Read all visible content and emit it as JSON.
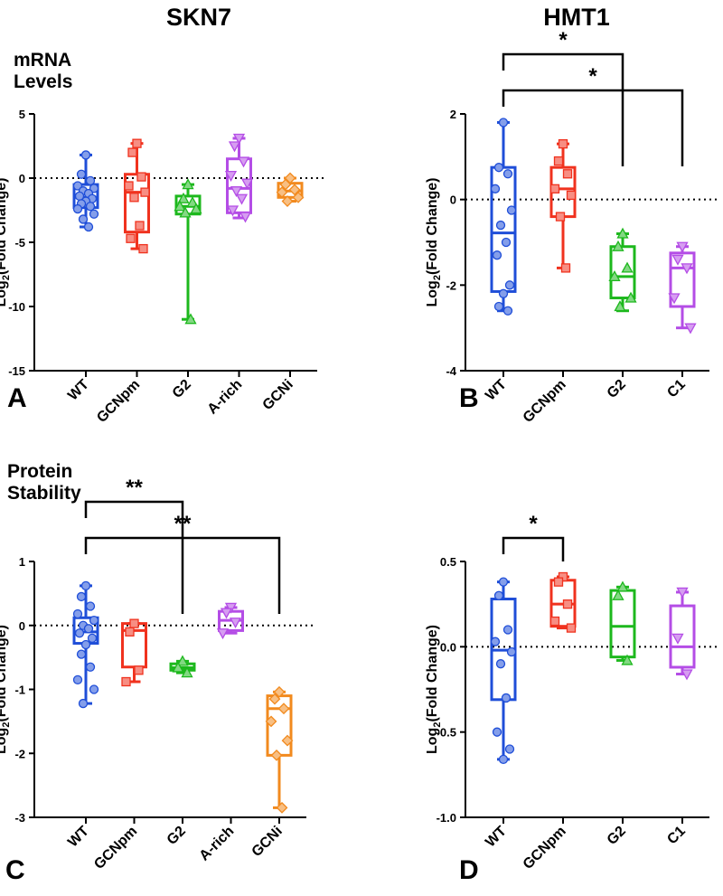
{
  "figure": {
    "col_titles": [
      "SKN7",
      "HMT1"
    ],
    "row_titles": [
      "mRNA\nLevels",
      "Protein\nStability"
    ],
    "group_colors": {
      "WT": "#1f4ed8",
      "GCNpm": "#f0321e",
      "G2": "#1db81d",
      "A-rich": "#b44de6",
      "C1": "#b44de6",
      "GCNi": "#f28a1e"
    },
    "marker_shapes": {
      "WT": "circle",
      "GCNpm": "square",
      "G2": "triangle-up",
      "A-rich": "triangle-down",
      "C1": "triangle-down",
      "GCNi": "diamond"
    }
  },
  "chart_data": [
    {
      "panel": "A",
      "type": "box",
      "ylabel": "Log2(Fold Change)",
      "ylim": [
        -15,
        5
      ],
      "yticks": [
        5,
        0,
        -5,
        -10,
        -15
      ],
      "reference_line": 0,
      "categories": [
        "WT",
        "GCNpm",
        "G2",
        "A-rich",
        "GCNi"
      ],
      "boxes": [
        {
          "category": "WT",
          "min": -3.8,
          "q1": -2.3,
          "median": -1.5,
          "q3": -0.5,
          "max": 1.8,
          "points": [
            1.8,
            0.3,
            -0.2,
            -0.6,
            -0.8,
            -1.0,
            -1.2,
            -1.4,
            -1.6,
            -1.8,
            -2.0,
            -2.2,
            -2.4,
            -2.8,
            -3.2,
            -3.8
          ]
        },
        {
          "category": "GCNpm",
          "min": -5.5,
          "q1": -4.2,
          "median": -1.1,
          "q3": 0.3,
          "max": 2.7,
          "points": [
            2.7,
            2.0,
            0.1,
            -0.6,
            -1.1,
            -1.5,
            -3.7,
            -4.7,
            -5.5
          ]
        },
        {
          "category": "G2",
          "min": -11.0,
          "q1": -2.8,
          "median": -2.2,
          "q3": -1.4,
          "max": -0.5,
          "points": [
            -0.5,
            -1.6,
            -1.9,
            -2.2,
            -2.4,
            -2.7,
            -11.0
          ]
        },
        {
          "category": "A-rich",
          "min": -3.1,
          "q1": -2.7,
          "median": -0.8,
          "q3": 1.5,
          "max": 3.1,
          "points": [
            3.1,
            2.5,
            1.3,
            0.2,
            -0.4,
            -1.0,
            -1.6,
            -2.5,
            -3.0
          ]
        },
        {
          "category": "GCNi",
          "min": -1.8,
          "q1": -1.5,
          "median": -1.0,
          "q3": -0.4,
          "max": 0.0,
          "points": [
            0.0,
            -0.5,
            -0.9,
            -1.1,
            -1.5,
            -1.8
          ]
        }
      ],
      "significance": []
    },
    {
      "panel": "B",
      "type": "box",
      "ylabel": "Log2(Fold Change)",
      "ylim": [
        -4,
        2
      ],
      "yticks": [
        2,
        0,
        -2,
        -4
      ],
      "reference_line": 0,
      "categories": [
        "WT",
        "GCNpm",
        "G2",
        "C1"
      ],
      "boxes": [
        {
          "category": "WT",
          "min": -2.6,
          "q1": -2.15,
          "median": -0.78,
          "q3": 0.75,
          "max": 1.8,
          "points": [
            1.8,
            0.75,
            0.6,
            0.25,
            -0.25,
            -0.6,
            -1.0,
            -1.3,
            -2.0,
            -2.2,
            -2.5,
            -2.6
          ]
        },
        {
          "category": "GCNpm",
          "min": -1.6,
          "q1": -0.4,
          "median": 0.25,
          "q3": 0.75,
          "max": 1.3,
          "points": [
            1.3,
            0.9,
            0.6,
            0.25,
            0.1,
            -0.4,
            -1.6
          ]
        },
        {
          "category": "G2",
          "min": -2.6,
          "q1": -2.3,
          "median": -1.8,
          "q3": -1.1,
          "max": -0.8,
          "points": [
            -0.8,
            -1.1,
            -1.6,
            -1.8,
            -2.3,
            -2.5
          ]
        },
        {
          "category": "C1",
          "min": -3.0,
          "q1": -2.5,
          "median": -1.6,
          "q3": -1.25,
          "max": -1.1,
          "points": [
            -1.1,
            -1.4,
            -1.6,
            -2.3,
            -3.0
          ]
        }
      ],
      "significance": [
        {
          "from": "WT",
          "to": "G2",
          "label": "*"
        },
        {
          "from": "WT",
          "to": "C1",
          "label": "*"
        }
      ]
    },
    {
      "panel": "C",
      "type": "box",
      "ylabel": "Log2(Fold Change)",
      "ylim": [
        -3,
        1
      ],
      "yticks": [
        1,
        0,
        -1,
        -2,
        -3
      ],
      "reference_line": 0,
      "categories": [
        "WT",
        "GCNpm",
        "G2",
        "A-rich",
        "GCNi"
      ],
      "boxes": [
        {
          "category": "WT",
          "min": -1.22,
          "q1": -0.28,
          "median": -0.1,
          "q3": 0.12,
          "max": 0.62,
          "points": [
            0.62,
            0.45,
            0.3,
            0.18,
            0.08,
            0.0,
            -0.05,
            -0.12,
            -0.2,
            -0.3,
            -0.45,
            -0.65,
            -0.85,
            -1.0,
            -1.22
          ]
        },
        {
          "category": "GCNpm",
          "min": -0.88,
          "q1": -0.65,
          "median": -0.08,
          "q3": 0.03,
          "max": 0.03,
          "points": [
            0.03,
            -0.1,
            -0.7,
            -0.88
          ]
        },
        {
          "category": "G2",
          "min": -0.74,
          "q1": -0.7,
          "median": -0.66,
          "q3": -0.6,
          "max": -0.56,
          "points": [
            -0.56,
            -0.66,
            -0.74
          ]
        },
        {
          "category": "A-rich",
          "min": -0.12,
          "q1": -0.08,
          "median": 0.08,
          "q3": 0.22,
          "max": 0.28,
          "points": [
            0.28,
            0.2,
            0.05,
            -0.12
          ]
        },
        {
          "category": "GCNi",
          "min": -2.85,
          "q1": -2.03,
          "median": -1.3,
          "q3": -1.1,
          "max": -1.04,
          "points": [
            -1.04,
            -1.15,
            -1.3,
            -1.5,
            -1.8,
            -2.03,
            -2.85
          ]
        }
      ],
      "significance": [
        {
          "from": "WT",
          "to": "G2",
          "label": "**"
        },
        {
          "from": "WT",
          "to": "GCNi",
          "label": "**"
        }
      ]
    },
    {
      "panel": "D",
      "type": "box",
      "ylabel": "Log2(Fold Change)",
      "ylim": [
        -1.0,
        0.5
      ],
      "yticks": [
        0.5,
        0.0,
        -0.5,
        -1.0
      ],
      "tick_format": "fixed1",
      "reference_line": 0,
      "categories": [
        "WT",
        "GCNpm",
        "G2",
        "C1"
      ],
      "boxes": [
        {
          "category": "WT",
          "min": -0.66,
          "q1": -0.31,
          "median": -0.02,
          "q3": 0.28,
          "max": 0.38,
          "points": [
            0.38,
            0.3,
            0.1,
            0.03,
            -0.03,
            -0.1,
            -0.3,
            -0.5,
            -0.6,
            -0.66
          ]
        },
        {
          "category": "GCNpm",
          "min": 0.11,
          "q1": 0.12,
          "median": 0.25,
          "q3": 0.39,
          "max": 0.41,
          "points": [
            0.41,
            0.38,
            0.25,
            0.15,
            0.11
          ]
        },
        {
          "category": "G2",
          "min": -0.08,
          "q1": -0.06,
          "median": 0.12,
          "q3": 0.33,
          "max": 0.35,
          "points": [
            0.35,
            0.3,
            -0.08
          ]
        },
        {
          "category": "C1",
          "min": -0.16,
          "q1": -0.12,
          "median": 0.0,
          "q3": 0.24,
          "max": 0.32,
          "points": [
            0.32,
            0.05,
            -0.16
          ]
        }
      ],
      "significance": [
        {
          "from": "WT",
          "to": "GCNpm",
          "label": "*"
        }
      ]
    }
  ]
}
